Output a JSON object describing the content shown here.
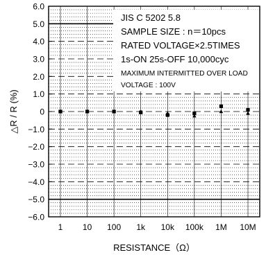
{
  "chart_data": {
    "type": "scatter",
    "title": "",
    "xlabel": "RESISTANCE（Ω）",
    "ylabel": "△R / R  (%)",
    "x_scale": "log",
    "x_ticks": [
      "1",
      "10",
      "100",
      "1k",
      "10k",
      "100k",
      "1M",
      "10M"
    ],
    "x_values": [
      1,
      10,
      100,
      1000,
      10000,
      100000,
      1000000,
      10000000
    ],
    "ylim": [
      -6.0,
      6.0
    ],
    "y_ticks": [
      "6.0",
      "5.0",
      "4.0",
      "3.0",
      "2.0",
      "1.0",
      "0",
      "−1.0",
      "−2.0",
      "−3.0",
      "−4.0",
      "−5.0",
      "−6.0"
    ],
    "y_tick_values": [
      6,
      5,
      4,
      3,
      2,
      1,
      0,
      -1,
      -2,
      -3,
      -4,
      -5,
      -6
    ],
    "limit_lines": [
      5.0,
      -5.0
    ],
    "grid": true,
    "series": [
      {
        "marker": "square",
        "points": [
          {
            "x": 1,
            "y": 0.0
          },
          {
            "x": 10,
            "y": 0.0
          },
          {
            "x": 100,
            "y": 0.0
          },
          {
            "x": 1000,
            "y": -0.05
          },
          {
            "x": 10000,
            "y": -0.2
          },
          {
            "x": 100000,
            "y": -0.1
          },
          {
            "x": 1000000,
            "y": 0.3
          },
          {
            "x": 10000000,
            "y": 0.1
          }
        ]
      },
      {
        "marker": "triangle",
        "points": [
          {
            "x": 1,
            "y": 0.0
          },
          {
            "x": 10,
            "y": 0.0
          },
          {
            "x": 100,
            "y": 0.0
          },
          {
            "x": 1000,
            "y": 0.0
          },
          {
            "x": 10000,
            "y": -0.1
          },
          {
            "x": 100000,
            "y": -0.25
          },
          {
            "x": 1000000,
            "y": 0.0
          },
          {
            "x": 10000000,
            "y": -0.1
          }
        ]
      }
    ],
    "annotations": [
      "JIS C 5202 5.8",
      "SAMPLE SIZE : n＝10pcs",
      "RATED VOLTAGE×2.5TIMES",
      "1s-ON 25s-OFF 10,000cyc",
      "MAXIMUM INTERMITTED OVER LOAD",
      "VOLTAGE : 100V"
    ],
    "legend_placement": "top-right"
  },
  "colors": {
    "line": "#000000",
    "grid": "#000000",
    "background": "#ffffff"
  }
}
